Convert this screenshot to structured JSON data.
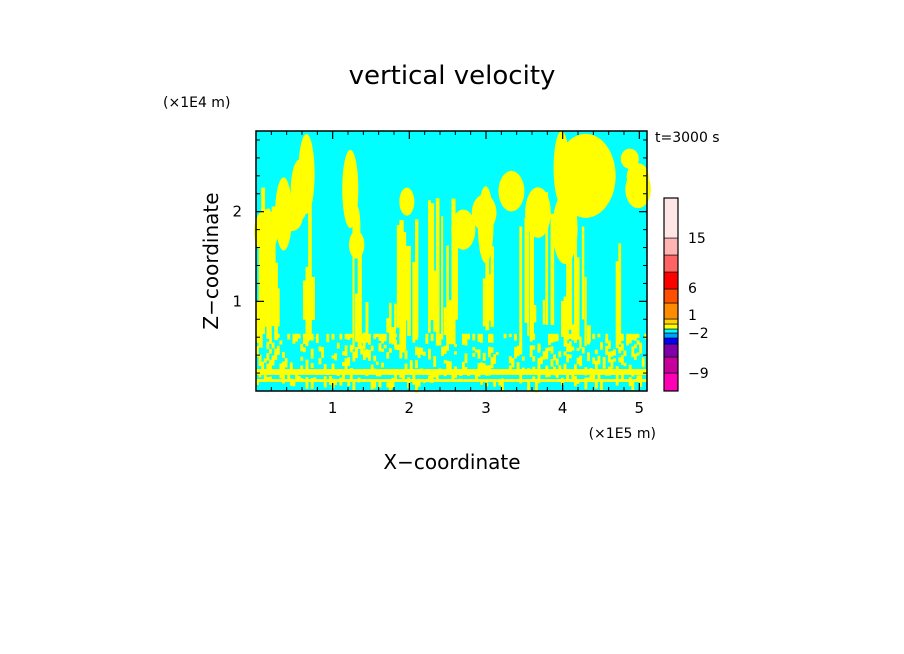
{
  "chart_data": {
    "type": "heatmap",
    "title": "vertical velocity",
    "xlabel": "X−coordinate",
    "ylabel": "Z−coordinate",
    "x_unit": "(×1E5 m)",
    "y_unit": "(×1E4 m)",
    "time_label": "t=3000 s",
    "xlim": [
      0,
      5.1
    ],
    "ylim": [
      0,
      2.9
    ],
    "x_ticks": [
      1,
      2,
      3,
      4,
      5
    ],
    "y_ticks": [
      1,
      2
    ],
    "colorbar": {
      "tick_labels": [
        15,
        6,
        1,
        -2,
        -9
      ],
      "levels": [
        {
          "color": "#ff00b4"
        },
        {
          "color": "#c8009b"
        },
        {
          "color": "#7d00aa"
        },
        {
          "color": "#0000ff"
        },
        {
          "color": "#00a0ff"
        },
        {
          "color": "#00ffff"
        },
        {
          "color": "#ffff00"
        },
        {
          "color": "#ffd200"
        },
        {
          "color": "#ff8c00"
        },
        {
          "color": "#ff5000"
        },
        {
          "color": "#ff0000"
        },
        {
          "color": "#ff6464"
        },
        {
          "color": "#ffb4b4"
        },
        {
          "color": "#ffe6e6"
        }
      ]
    },
    "field_colors": {
      "negative": "#00ffff",
      "positive": "#ffff00"
    }
  }
}
